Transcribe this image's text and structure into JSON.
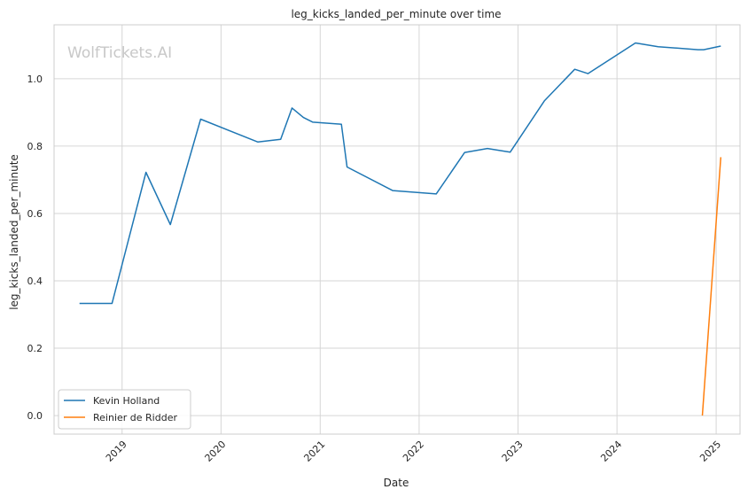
{
  "chart_data": {
    "type": "line",
    "title": "leg_kicks_landed_per_minute over time",
    "xlabel": "Date",
    "ylabel": "leg_kicks_landed_per_minute",
    "watermark": "WolfTickets.AI",
    "xlim": [
      "2018-04-25",
      "2025-03-30"
    ],
    "ylim": [
      -0.055,
      1.16
    ],
    "x_ticks": [
      {
        "date": "2019-01-01",
        "label": "2019"
      },
      {
        "date": "2020-01-01",
        "label": "2020"
      },
      {
        "date": "2021-01-01",
        "label": "2021"
      },
      {
        "date": "2022-01-01",
        "label": "2022"
      },
      {
        "date": "2023-01-01",
        "label": "2023"
      },
      {
        "date": "2024-01-01",
        "label": "2024"
      },
      {
        "date": "2025-01-01",
        "label": "2025"
      }
    ],
    "y_ticks": [
      {
        "value": 0.0,
        "label": "0.0"
      },
      {
        "value": 0.2,
        "label": "0.2"
      },
      {
        "value": 0.4,
        "label": "0.4"
      },
      {
        "value": 0.6,
        "label": "0.6"
      },
      {
        "value": 0.8,
        "label": "0.8"
      },
      {
        "value": 1.0,
        "label": "1.0"
      }
    ],
    "grid": true,
    "legend_position": "bottom-left",
    "series": [
      {
        "name": "Kevin Holland",
        "color": "#1f77b4",
        "points": [
          {
            "x": "2018-07-28",
            "y": 0.333
          },
          {
            "x": "2018-11-25",
            "y": 0.333
          },
          {
            "x": "2019-03-30",
            "y": 0.722
          },
          {
            "x": "2019-06-28",
            "y": 0.567
          },
          {
            "x": "2019-10-18",
            "y": 0.88
          },
          {
            "x": "2020-05-16",
            "y": 0.812
          },
          {
            "x": "2020-08-08",
            "y": 0.82
          },
          {
            "x": "2020-09-19",
            "y": 0.913
          },
          {
            "x": "2020-10-31",
            "y": 0.885
          },
          {
            "x": "2020-12-05",
            "y": 0.871
          },
          {
            "x": "2021-03-20",
            "y": 0.865
          },
          {
            "x": "2021-04-10",
            "y": 0.738
          },
          {
            "x": "2021-09-25",
            "y": 0.668
          },
          {
            "x": "2022-03-05",
            "y": 0.658
          },
          {
            "x": "2022-06-18",
            "y": 0.781
          },
          {
            "x": "2022-09-10",
            "y": 0.793
          },
          {
            "x": "2022-12-03",
            "y": 0.782
          },
          {
            "x": "2023-04-08",
            "y": 0.934
          },
          {
            "x": "2023-07-29",
            "y": 1.028
          },
          {
            "x": "2023-09-16",
            "y": 1.015
          },
          {
            "x": "2024-03-09",
            "y": 1.106
          },
          {
            "x": "2024-06-01",
            "y": 1.095
          },
          {
            "x": "2024-10-26",
            "y": 1.086
          },
          {
            "x": "2024-11-16",
            "y": 1.086
          },
          {
            "x": "2025-01-18",
            "y": 1.097
          }
        ]
      },
      {
        "name": "Reinier de Ridder",
        "color": "#ff7f0e",
        "points": [
          {
            "x": "2024-11-11",
            "y": 0.0
          },
          {
            "x": "2025-01-18",
            "y": 0.767
          }
        ]
      }
    ]
  }
}
